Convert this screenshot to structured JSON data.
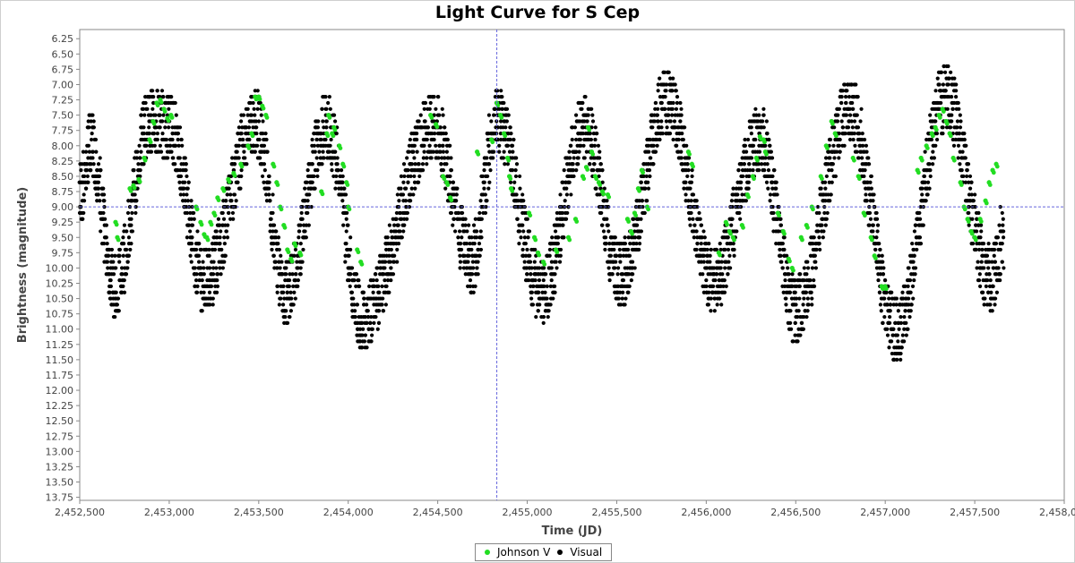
{
  "chart_data": {
    "type": "scatter",
    "title": "Light Curve for S Cep",
    "xlabel": "Time (JD)",
    "ylabel": "Brightness (magnitude)",
    "xlim": [
      2452500,
      2458000
    ],
    "ylim": [
      13.8,
      6.1
    ],
    "y_inverted": true,
    "x_ticks": [
      2452500,
      2453000,
      2453500,
      2454000,
      2454500,
      2455000,
      2455500,
      2456000,
      2456500,
      2457000,
      2457500,
      2458000
    ],
    "x_tick_labels": [
      "2,452,500",
      "2,453,000",
      "2,453,500",
      "2,454,000",
      "2,454,500",
      "2,455,000",
      "2,455,500",
      "2,456,000",
      "2,456,500",
      "2,457,000",
      "2,457,500",
      "2,458,000"
    ],
    "y_ticks": [
      6.25,
      6.5,
      6.75,
      7.0,
      7.25,
      7.5,
      7.75,
      8.0,
      8.25,
      8.5,
      8.75,
      9.0,
      9.25,
      9.5,
      9.75,
      10.0,
      10.25,
      10.5,
      10.75,
      11.0,
      11.25,
      11.5,
      11.75,
      12.0,
      12.25,
      12.5,
      12.75,
      13.0,
      13.25,
      13.5,
      13.75
    ],
    "y_tick_labels": [
      "6.25",
      "6.50",
      "6.75",
      "7.00",
      "7.25",
      "7.50",
      "7.75",
      "8.00",
      "8.25",
      "8.50",
      "8.75",
      "9.00",
      "9.25",
      "9.50",
      "9.75",
      "10.00",
      "10.25",
      "10.50",
      "10.75",
      "11.00",
      "11.25",
      "11.50",
      "11.75",
      "12.00",
      "12.25",
      "12.50",
      "12.75",
      "13.00",
      "13.25",
      "13.50",
      "13.75"
    ],
    "crosshair": {
      "x": 2454830,
      "y": 9.0
    },
    "grid": false,
    "legend": {
      "placement": "bottom-center"
    },
    "series": [
      {
        "name": "Johnson V",
        "color": "#22dd22",
        "points": [
          [
            2452700,
            9.25
          ],
          [
            2452710,
            9.5
          ],
          [
            2452780,
            8.7
          ],
          [
            2452800,
            8.65
          ],
          [
            2452830,
            8.55
          ],
          [
            2452860,
            8.2
          ],
          [
            2452890,
            7.9
          ],
          [
            2452910,
            7.6
          ],
          [
            2452930,
            7.3
          ],
          [
            2452950,
            7.25
          ],
          [
            2452970,
            7.4
          ],
          [
            2452990,
            7.55
          ],
          [
            2453010,
            7.5
          ],
          [
            2453150,
            9.0
          ],
          [
            2453175,
            9.25
          ],
          [
            2453195,
            9.45
          ],
          [
            2453210,
            9.5
          ],
          [
            2453230,
            9.25
          ],
          [
            2453250,
            9.1
          ],
          [
            2453270,
            8.85
          ],
          [
            2453300,
            8.7
          ],
          [
            2453330,
            8.55
          ],
          [
            2453360,
            8.45
          ],
          [
            2453400,
            8.3
          ],
          [
            2453440,
            8.0
          ],
          [
            2453460,
            7.8
          ],
          [
            2453480,
            7.2
          ],
          [
            2453500,
            7.2
          ],
          [
            2453520,
            7.35
          ],
          [
            2453540,
            7.5
          ],
          [
            2453580,
            8.3
          ],
          [
            2453600,
            8.6
          ],
          [
            2453620,
            9.0
          ],
          [
            2453640,
            9.3
          ],
          [
            2453660,
            9.7
          ],
          [
            2453680,
            9.85
          ],
          [
            2453700,
            9.6
          ],
          [
            2453730,
            9.75
          ],
          [
            2453850,
            8.75
          ],
          [
            2453880,
            7.8
          ],
          [
            2453890,
            7.5
          ],
          [
            2453910,
            7.8
          ],
          [
            2453920,
            7.7
          ],
          [
            2453950,
            8.0
          ],
          [
            2453970,
            8.3
          ],
          [
            2453990,
            8.6
          ],
          [
            2454000,
            9.0
          ],
          [
            2454050,
            9.7
          ],
          [
            2454070,
            9.9
          ],
          [
            2454460,
            7.5
          ],
          [
            2454490,
            7.65
          ],
          [
            2454530,
            8.5
          ],
          [
            2454550,
            8.6
          ],
          [
            2454570,
            8.85
          ],
          [
            2454720,
            8.1
          ],
          [
            2454800,
            7.9
          ],
          [
            2454830,
            7.3
          ],
          [
            2454850,
            7.5
          ],
          [
            2454870,
            7.8
          ],
          [
            2454890,
            8.2
          ],
          [
            2454900,
            8.5
          ],
          [
            2454910,
            8.7
          ],
          [
            2455010,
            9.1
          ],
          [
            2455040,
            9.5
          ],
          [
            2455060,
            9.75
          ],
          [
            2455090,
            9.9
          ],
          [
            2455160,
            9.7
          ],
          [
            2455230,
            9.5
          ],
          [
            2455270,
            9.2
          ],
          [
            2455310,
            8.5
          ],
          [
            2455330,
            8.35
          ],
          [
            2455340,
            7.7
          ],
          [
            2455360,
            8.1
          ],
          [
            2455380,
            8.5
          ],
          [
            2455400,
            8.6
          ],
          [
            2455420,
            8.75
          ],
          [
            2455450,
            8.8
          ],
          [
            2455560,
            9.2
          ],
          [
            2455580,
            9.4
          ],
          [
            2455600,
            9.1
          ],
          [
            2455620,
            8.7
          ],
          [
            2455640,
            8.4
          ],
          [
            2455670,
            9.0
          ],
          [
            2455900,
            8.1
          ],
          [
            2455920,
            8.3
          ],
          [
            2456070,
            9.75
          ],
          [
            2456110,
            9.25
          ],
          [
            2456130,
            9.4
          ],
          [
            2456150,
            9.5
          ],
          [
            2456200,
            9.3
          ],
          [
            2456230,
            8.8
          ],
          [
            2456260,
            8.5
          ],
          [
            2456280,
            8.2
          ],
          [
            2456300,
            7.85
          ],
          [
            2456320,
            7.9
          ],
          [
            2456330,
            8.1
          ],
          [
            2456400,
            9.1
          ],
          [
            2456430,
            9.4
          ],
          [
            2456460,
            9.85
          ],
          [
            2456480,
            10.0
          ],
          [
            2456530,
            9.5
          ],
          [
            2456560,
            9.3
          ],
          [
            2456590,
            9.0
          ],
          [
            2456640,
            8.5
          ],
          [
            2456670,
            8.0
          ],
          [
            2456700,
            7.6
          ],
          [
            2456720,
            7.8
          ],
          [
            2456820,
            8.2
          ],
          [
            2456850,
            8.5
          ],
          [
            2456880,
            9.1
          ],
          [
            2456920,
            9.5
          ],
          [
            2456940,
            9.8
          ],
          [
            2456980,
            10.3
          ],
          [
            2457000,
            10.3
          ],
          [
            2457180,
            8.4
          ],
          [
            2457200,
            8.2
          ],
          [
            2457230,
            8.0
          ],
          [
            2457260,
            7.8
          ],
          [
            2457280,
            7.7
          ],
          [
            2457300,
            7.5
          ],
          [
            2457320,
            7.4
          ],
          [
            2457340,
            7.6
          ],
          [
            2457360,
            7.8
          ],
          [
            2457380,
            8.2
          ],
          [
            2457420,
            8.6
          ],
          [
            2457440,
            9.0
          ],
          [
            2457460,
            9.2
          ],
          [
            2457480,
            9.4
          ],
          [
            2457500,
            9.5
          ],
          [
            2457530,
            9.2
          ],
          [
            2457560,
            8.9
          ],
          [
            2457580,
            8.6
          ],
          [
            2457600,
            8.4
          ],
          [
            2457620,
            8.3
          ]
        ]
      },
      {
        "name": "Visual",
        "color": "#000000",
        "cycles": [
          [
            2452500,
            8.8
          ],
          [
            2452560,
            8.0
          ],
          [
            2452700,
            10.3
          ],
          [
            2452890,
            7.6
          ],
          [
            2453000,
            7.7
          ],
          [
            2453200,
            10.2
          ],
          [
            2453480,
            7.6
          ],
          [
            2453650,
            10.4
          ],
          [
            2453880,
            7.7
          ],
          [
            2454080,
            10.8
          ],
          [
            2454480,
            7.7
          ],
          [
            2454690,
            9.9
          ],
          [
            2454830,
            7.6
          ],
          [
            2455080,
            10.4
          ],
          [
            2455320,
            7.7
          ],
          [
            2455520,
            10.1
          ],
          [
            2455780,
            7.3
          ],
          [
            2456040,
            10.2
          ],
          [
            2456300,
            7.9
          ],
          [
            2456500,
            10.7
          ],
          [
            2456800,
            7.4
          ],
          [
            2457060,
            11.0
          ],
          [
            2457340,
            7.2
          ],
          [
            2457590,
            10.2
          ],
          [
            2457660,
            9.5
          ]
        ],
        "scatter_halfwidth_mag": 0.55
      }
    ]
  }
}
